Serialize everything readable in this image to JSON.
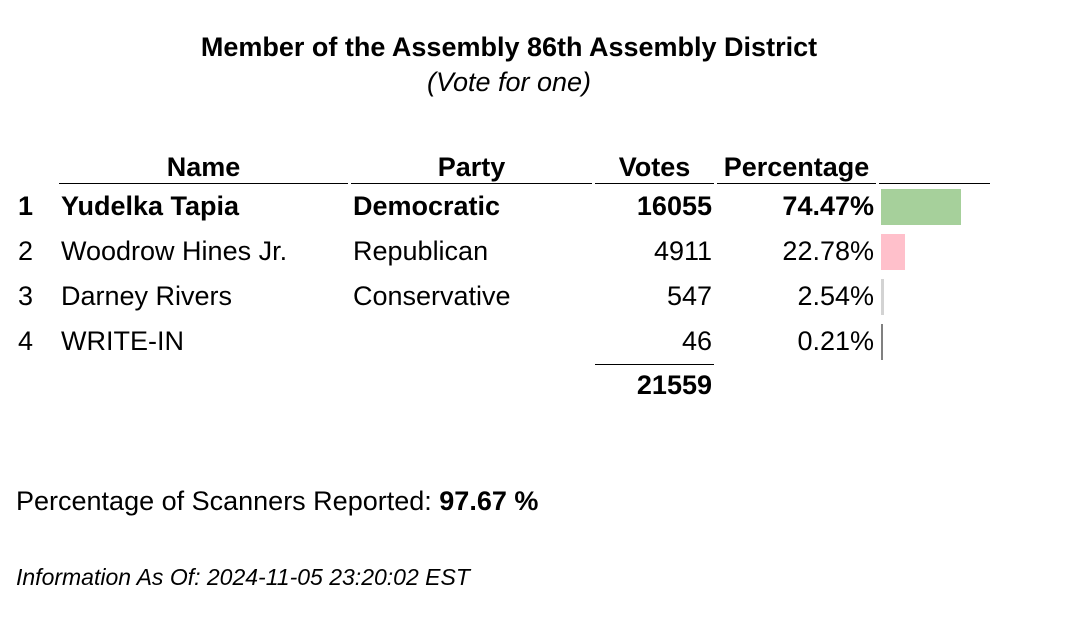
{
  "contest": {
    "title": "Member of the Assembly 86th Assembly District",
    "subtitle": "(Vote for one)"
  },
  "table": {
    "headers": {
      "name": "Name",
      "party": "Party",
      "votes": "Votes",
      "percentage": "Percentage"
    },
    "rows": [
      {
        "rank": "1",
        "name": "Yudelka Tapia",
        "party": "Democratic",
        "votes": "16055",
        "percentage": "74.47%",
        "share": 74.47,
        "bar_color": "#a6d09b"
      },
      {
        "rank": "2",
        "name": "Woodrow Hines Jr.",
        "party": "Republican",
        "votes": "4911",
        "percentage": "22.78%",
        "share": 22.78,
        "bar_color": "#ffc0cb"
      },
      {
        "rank": "3",
        "name": "Darney Rivers",
        "party": "Conservative",
        "votes": "547",
        "percentage": "2.54%",
        "share": 2.54,
        "bar_color": "#d3d3d3"
      },
      {
        "rank": "4",
        "name": "WRITE-IN",
        "party": "",
        "votes": "46",
        "percentage": "0.21%",
        "share": 0.21,
        "bar_color": "#808080"
      }
    ],
    "total_votes": "21559"
  },
  "scanners": {
    "label": "Percentage of Scanners Reported:",
    "value": "97.67 %"
  },
  "updated": {
    "text": "Information As Of: 2024-11-05 23:20:02 EST"
  }
}
